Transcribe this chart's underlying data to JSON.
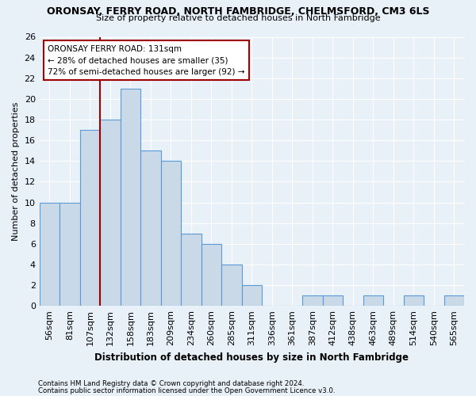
{
  "title": "ORONSAY, FERRY ROAD, NORTH FAMBRIDGE, CHELMSFORD, CM3 6LS",
  "subtitle": "Size of property relative to detached houses in North Fambridge",
  "xlabel": "Distribution of detached houses by size in North Fambridge",
  "ylabel": "Number of detached properties",
  "categories": [
    "56sqm",
    "81sqm",
    "107sqm",
    "132sqm",
    "158sqm",
    "183sqm",
    "209sqm",
    "234sqm",
    "260sqm",
    "285sqm",
    "311sqm",
    "336sqm",
    "361sqm",
    "387sqm",
    "412sqm",
    "438sqm",
    "463sqm",
    "489sqm",
    "514sqm",
    "540sqm",
    "565sqm"
  ],
  "values": [
    10,
    10,
    17,
    18,
    21,
    15,
    14,
    7,
    6,
    4,
    2,
    0,
    0,
    1,
    1,
    0,
    1,
    0,
    1,
    0,
    1
  ],
  "bar_color": "#c9d9e8",
  "bar_edge_color": "#5b9bd5",
  "background_color": "#e8f0f8",
  "grid_color": "#ffffff",
  "vline_index": 3,
  "vline_color": "#a00000",
  "annotation_line1": "ORONSAY FERRY ROAD: 131sqm",
  "annotation_line2": "← 28% of detached houses are smaller (35)",
  "annotation_line3": "72% of semi-detached houses are larger (92) →",
  "annotation_box_color": "#a00000",
  "footer1": "Contains HM Land Registry data © Crown copyright and database right 2024.",
  "footer2": "Contains public sector information licensed under the Open Government Licence v3.0.",
  "ylim": [
    0,
    26
  ],
  "yticks": [
    0,
    2,
    4,
    6,
    8,
    10,
    12,
    14,
    16,
    18,
    20,
    22,
    24,
    26
  ]
}
